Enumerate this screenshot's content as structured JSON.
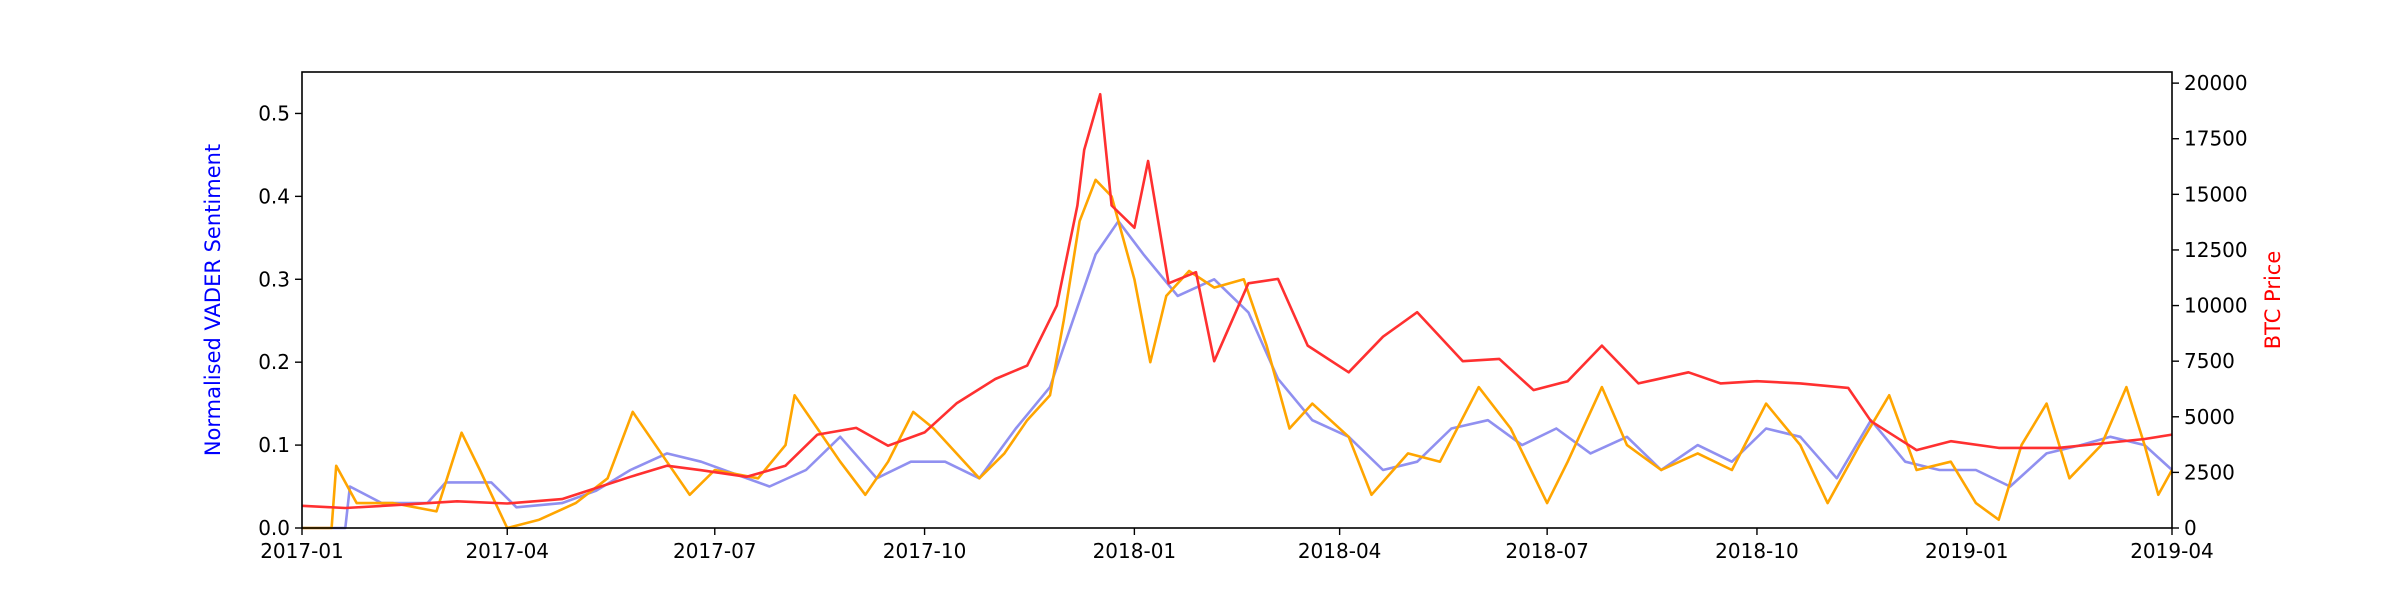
{
  "chart_data": {
    "type": "line",
    "title": "",
    "x_axis": {
      "type": "date",
      "range": [
        "2017-01-01",
        "2019-04-01"
      ],
      "tick_labels": [
        "2017-01",
        "2017-04",
        "2017-07",
        "2017-10",
        "2018-01",
        "2018-04",
        "2018-07",
        "2018-10",
        "2019-01",
        "2019-04"
      ]
    },
    "y_left": {
      "label": "Normalised VADER Sentiment",
      "label_color": "#0000ff",
      "range": [
        0,
        0.55
      ],
      "ticks": [
        0.0,
        0.1,
        0.2,
        0.3,
        0.4,
        0.5
      ],
      "tick_labels": [
        "0.0",
        "0.1",
        "0.2",
        "0.3",
        "0.4",
        "0.5"
      ]
    },
    "y_right": {
      "label": "BTC Price",
      "label_color": "#ff0000",
      "range": [
        0,
        20500
      ],
      "ticks": [
        0,
        2500,
        5000,
        7500,
        10000,
        12500,
        15000,
        17500,
        20000
      ],
      "tick_labels": [
        "0",
        "2500",
        "5000",
        "7500",
        "10000",
        "12500",
        "15000",
        "17500",
        "20000"
      ]
    },
    "grid": false,
    "legend": "none",
    "series": [
      {
        "axis": "left",
        "color": "#9090f0",
        "points": [
          [
            "2017-01-01",
            0.0
          ],
          [
            "2017-01-20",
            0.0
          ],
          [
            "2017-01-22",
            0.05
          ],
          [
            "2017-02-05",
            0.03
          ],
          [
            "2017-02-25",
            0.03
          ],
          [
            "2017-03-05",
            0.055
          ],
          [
            "2017-03-25",
            0.055
          ],
          [
            "2017-04-05",
            0.025
          ],
          [
            "2017-04-25",
            0.03
          ],
          [
            "2017-05-10",
            0.045
          ],
          [
            "2017-05-25",
            0.07
          ],
          [
            "2017-06-10",
            0.09
          ],
          [
            "2017-06-25",
            0.08
          ],
          [
            "2017-07-10",
            0.065
          ],
          [
            "2017-07-25",
            0.05
          ],
          [
            "2017-08-10",
            0.07
          ],
          [
            "2017-08-25",
            0.11
          ],
          [
            "2017-09-10",
            0.06
          ],
          [
            "2017-09-25",
            0.08
          ],
          [
            "2017-10-10",
            0.08
          ],
          [
            "2017-10-25",
            0.06
          ],
          [
            "2017-11-10",
            0.12
          ],
          [
            "2017-11-25",
            0.17
          ],
          [
            "2017-12-05",
            0.25
          ],
          [
            "2017-12-15",
            0.33
          ],
          [
            "2017-12-25",
            0.37
          ],
          [
            "2018-01-05",
            0.33
          ],
          [
            "2018-01-20",
            0.28
          ],
          [
            "2018-02-05",
            0.3
          ],
          [
            "2018-02-20",
            0.26
          ],
          [
            "2018-03-05",
            0.18
          ],
          [
            "2018-03-20",
            0.13
          ],
          [
            "2018-04-05",
            0.11
          ],
          [
            "2018-04-20",
            0.07
          ],
          [
            "2018-05-05",
            0.08
          ],
          [
            "2018-05-20",
            0.12
          ],
          [
            "2018-06-05",
            0.13
          ],
          [
            "2018-06-20",
            0.1
          ],
          [
            "2018-07-05",
            0.12
          ],
          [
            "2018-07-20",
            0.09
          ],
          [
            "2018-08-05",
            0.11
          ],
          [
            "2018-08-20",
            0.07
          ],
          [
            "2018-09-05",
            0.1
          ],
          [
            "2018-09-20",
            0.08
          ],
          [
            "2018-10-05",
            0.12
          ],
          [
            "2018-10-20",
            0.11
          ],
          [
            "2018-11-05",
            0.06
          ],
          [
            "2018-11-20",
            0.13
          ],
          [
            "2018-12-05",
            0.08
          ],
          [
            "2018-12-20",
            0.07
          ],
          [
            "2019-01-05",
            0.07
          ],
          [
            "2019-01-20",
            0.05
          ],
          [
            "2019-02-05",
            0.09
          ],
          [
            "2019-02-20",
            0.1
          ],
          [
            "2019-03-05",
            0.11
          ],
          [
            "2019-03-20",
            0.1
          ],
          [
            "2019-04-01",
            0.07
          ]
        ]
      },
      {
        "axis": "left",
        "color": "#ffa500",
        "points": [
          [
            "2017-01-01",
            0.0
          ],
          [
            "2017-01-14",
            0.0
          ],
          [
            "2017-01-16",
            0.075
          ],
          [
            "2017-01-25",
            0.03
          ],
          [
            "2017-02-10",
            0.03
          ],
          [
            "2017-03-01",
            0.02
          ],
          [
            "2017-03-12",
            0.115
          ],
          [
            "2017-03-20",
            0.07
          ],
          [
            "2017-04-01",
            0.0
          ],
          [
            "2017-04-15",
            0.01
          ],
          [
            "2017-05-01",
            0.03
          ],
          [
            "2017-05-15",
            0.06
          ],
          [
            "2017-05-26",
            0.14
          ],
          [
            "2017-06-10",
            0.08
          ],
          [
            "2017-06-20",
            0.04
          ],
          [
            "2017-07-01",
            0.07
          ],
          [
            "2017-07-20",
            0.06
          ],
          [
            "2017-08-01",
            0.1
          ],
          [
            "2017-08-05",
            0.16
          ],
          [
            "2017-08-15",
            0.12
          ],
          [
            "2017-08-25",
            0.08
          ],
          [
            "2017-09-05",
            0.04
          ],
          [
            "2017-09-15",
            0.08
          ],
          [
            "2017-09-26",
            0.14
          ],
          [
            "2017-10-05",
            0.12
          ],
          [
            "2017-10-15",
            0.09
          ],
          [
            "2017-10-25",
            0.06
          ],
          [
            "2017-11-05",
            0.09
          ],
          [
            "2017-11-15",
            0.13
          ],
          [
            "2017-11-25",
            0.16
          ],
          [
            "2017-12-01",
            0.25
          ],
          [
            "2017-12-08",
            0.37
          ],
          [
            "2017-12-15",
            0.42
          ],
          [
            "2017-12-22",
            0.4
          ],
          [
            "2018-01-01",
            0.3
          ],
          [
            "2018-01-08",
            0.2
          ],
          [
            "2018-01-15",
            0.28
          ],
          [
            "2018-01-25",
            0.31
          ],
          [
            "2018-02-05",
            0.29
          ],
          [
            "2018-02-18",
            0.3
          ],
          [
            "2018-02-28",
            0.22
          ],
          [
            "2018-03-10",
            0.12
          ],
          [
            "2018-03-20",
            0.15
          ],
          [
            "2018-04-05",
            0.11
          ],
          [
            "2018-04-15",
            0.04
          ],
          [
            "2018-05-01",
            0.09
          ],
          [
            "2018-05-15",
            0.08
          ],
          [
            "2018-06-01",
            0.17
          ],
          [
            "2018-06-15",
            0.12
          ],
          [
            "2018-07-01",
            0.03
          ],
          [
            "2018-07-10",
            0.08
          ],
          [
            "2018-07-25",
            0.17
          ],
          [
            "2018-08-05",
            0.1
          ],
          [
            "2018-08-20",
            0.07
          ],
          [
            "2018-09-05",
            0.09
          ],
          [
            "2018-09-20",
            0.07
          ],
          [
            "2018-10-05",
            0.15
          ],
          [
            "2018-10-20",
            0.1
          ],
          [
            "2018-11-01",
            0.03
          ],
          [
            "2018-11-15",
            0.1
          ],
          [
            "2018-11-28",
            0.16
          ],
          [
            "2018-12-10",
            0.07
          ],
          [
            "2018-12-25",
            0.08
          ],
          [
            "2019-01-05",
            0.03
          ],
          [
            "2019-01-15",
            0.01
          ],
          [
            "2019-01-25",
            0.1
          ],
          [
            "2019-02-05",
            0.15
          ],
          [
            "2019-02-15",
            0.06
          ],
          [
            "2019-03-01",
            0.1
          ],
          [
            "2019-03-12",
            0.17
          ],
          [
            "2019-03-20",
            0.1
          ],
          [
            "2019-03-26",
            0.04
          ],
          [
            "2019-04-01",
            0.07
          ]
        ]
      },
      {
        "axis": "right",
        "color": "#ff3030",
        "points": [
          [
            "2017-01-01",
            1000
          ],
          [
            "2017-01-20",
            900
          ],
          [
            "2017-02-15",
            1050
          ],
          [
            "2017-03-10",
            1200
          ],
          [
            "2017-04-01",
            1100
          ],
          [
            "2017-04-25",
            1300
          ],
          [
            "2017-05-10",
            1800
          ],
          [
            "2017-05-25",
            2300
          ],
          [
            "2017-06-10",
            2800
          ],
          [
            "2017-06-25",
            2600
          ],
          [
            "2017-07-15",
            2300
          ],
          [
            "2017-08-01",
            2800
          ],
          [
            "2017-08-15",
            4200
          ],
          [
            "2017-09-01",
            4500
          ],
          [
            "2017-09-15",
            3700
          ],
          [
            "2017-10-01",
            4300
          ],
          [
            "2017-10-15",
            5600
          ],
          [
            "2017-11-01",
            6700
          ],
          [
            "2017-11-15",
            7300
          ],
          [
            "2017-11-28",
            10000
          ],
          [
            "2017-12-07",
            14500
          ],
          [
            "2017-12-10",
            17000
          ],
          [
            "2017-12-17",
            19500
          ],
          [
            "2017-12-22",
            14500
          ],
          [
            "2018-01-01",
            13500
          ],
          [
            "2018-01-07",
            16500
          ],
          [
            "2018-01-16",
            11000
          ],
          [
            "2018-01-28",
            11500
          ],
          [
            "2018-02-05",
            7500
          ],
          [
            "2018-02-20",
            11000
          ],
          [
            "2018-03-05",
            11200
          ],
          [
            "2018-03-18",
            8200
          ],
          [
            "2018-04-05",
            7000
          ],
          [
            "2018-04-20",
            8600
          ],
          [
            "2018-05-05",
            9700
          ],
          [
            "2018-05-25",
            7500
          ],
          [
            "2018-06-10",
            7600
          ],
          [
            "2018-06-25",
            6200
          ],
          [
            "2018-07-10",
            6600
          ],
          [
            "2018-07-25",
            8200
          ],
          [
            "2018-08-10",
            6500
          ],
          [
            "2018-09-01",
            7000
          ],
          [
            "2018-09-15",
            6500
          ],
          [
            "2018-10-01",
            6600
          ],
          [
            "2018-10-20",
            6500
          ],
          [
            "2018-11-10",
            6300
          ],
          [
            "2018-11-20",
            4800
          ],
          [
            "2018-12-10",
            3500
          ],
          [
            "2018-12-25",
            3900
          ],
          [
            "2019-01-15",
            3600
          ],
          [
            "2019-02-10",
            3600
          ],
          [
            "2019-03-01",
            3800
          ],
          [
            "2019-03-20",
            4000
          ],
          [
            "2019-04-01",
            4200
          ]
        ]
      }
    ]
  }
}
